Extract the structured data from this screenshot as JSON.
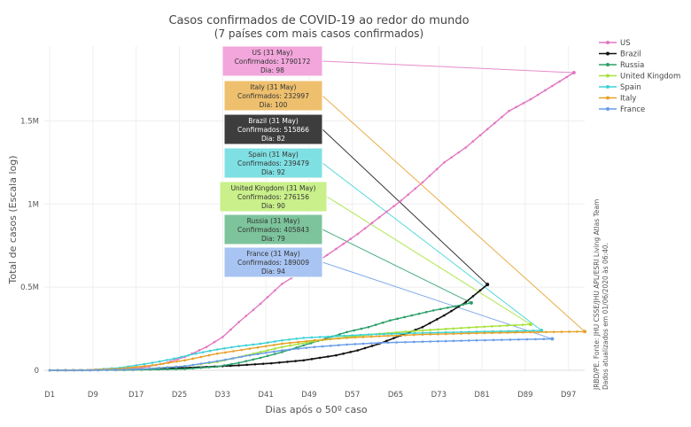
{
  "chart_data": {
    "type": "line",
    "title": "Casos confirmados de COVID-19 ao redor do mundo",
    "subtitle": "(7 países com mais casos confirmados)",
    "xlabel": "Dias após o 50º caso",
    "ylabel": "Total de casos (Escala log)",
    "xlim": [
      0,
      100
    ],
    "ylim": [
      0,
      1950000
    ],
    "x_ticks": [
      {
        "value": 1,
        "label": "D1"
      },
      {
        "value": 9,
        "label": "D9"
      },
      {
        "value": 17,
        "label": "D17"
      },
      {
        "value": 25,
        "label": "D25"
      },
      {
        "value": 33,
        "label": "D33"
      },
      {
        "value": 41,
        "label": "D41"
      },
      {
        "value": 49,
        "label": "D49"
      },
      {
        "value": 57,
        "label": "D57"
      },
      {
        "value": 65,
        "label": "D65"
      },
      {
        "value": 73,
        "label": "D73"
      },
      {
        "value": 81,
        "label": "D81"
      },
      {
        "value": 89,
        "label": "D89"
      },
      {
        "value": 97,
        "label": "D97"
      }
    ],
    "y_ticks": [
      {
        "value": 0,
        "label": "0"
      },
      {
        "value": 500000,
        "label": "0.5M"
      },
      {
        "value": 1000000,
        "label": "1M"
      },
      {
        "value": 1500000,
        "label": "1.5M"
      }
    ],
    "grid": true,
    "legend_position": "top-right",
    "series": [
      {
        "name": "US",
        "color": "#e377c2",
        "label_color": "#f2a6db",
        "end_day": 98,
        "end_value": 1790172,
        "points": [
          [
            1,
            60
          ],
          [
            10,
            2000
          ],
          [
            18,
            15000
          ],
          [
            22,
            40000
          ],
          [
            26,
            80000
          ],
          [
            30,
            140000
          ],
          [
            33,
            200000
          ],
          [
            36,
            290000
          ],
          [
            40,
            400000
          ],
          [
            44,
            520000
          ],
          [
            49,
            620000
          ],
          [
            54,
            730000
          ],
          [
            58,
            820000
          ],
          [
            62,
            920000
          ],
          [
            66,
            1020000
          ],
          [
            70,
            1130000
          ],
          [
            74,
            1250000
          ],
          [
            78,
            1340000
          ],
          [
            82,
            1450000
          ],
          [
            86,
            1560000
          ],
          [
            90,
            1630000
          ],
          [
            94,
            1710000
          ],
          [
            98,
            1790172
          ]
        ],
        "box": {
          "title": "US (31 May)",
          "line2": "Confirmados: 1790172",
          "line3": "Dia: 98"
        }
      },
      {
        "name": "Brazil",
        "color": "#111111",
        "label_color": "#3d3d3d",
        "end_day": 82,
        "end_value": 515866,
        "points": [
          [
            1,
            50
          ],
          [
            10,
            800
          ],
          [
            18,
            4000
          ],
          [
            24,
            12000
          ],
          [
            30,
            20000
          ],
          [
            36,
            30000
          ],
          [
            42,
            42000
          ],
          [
            48,
            60000
          ],
          [
            54,
            90000
          ],
          [
            58,
            120000
          ],
          [
            62,
            160000
          ],
          [
            66,
            210000
          ],
          [
            70,
            260000
          ],
          [
            74,
            330000
          ],
          [
            78,
            410000
          ],
          [
            82,
            515866
          ]
        ],
        "box": {
          "title": "Brazil (31 May)",
          "line2": "Confirmados: 515866",
          "line3": "Dia: 82"
        }
      },
      {
        "name": "Russia",
        "color": "#2ca06a",
        "label_color": "#7dc49c",
        "end_day": 79,
        "end_value": 405843,
        "points": [
          [
            1,
            50
          ],
          [
            10,
            1000
          ],
          [
            18,
            3000
          ],
          [
            26,
            8000
          ],
          [
            32,
            22000
          ],
          [
            36,
            45000
          ],
          [
            40,
            75000
          ],
          [
            44,
            110000
          ],
          [
            48,
            150000
          ],
          [
            52,
            190000
          ],
          [
            56,
            230000
          ],
          [
            60,
            260000
          ],
          [
            64,
            300000
          ],
          [
            68,
            330000
          ],
          [
            72,
            360000
          ],
          [
            76,
            385000
          ],
          [
            79,
            405843
          ]
        ],
        "box": {
          "title": "Russia (31 May)",
          "line2": "Confirmados: 405843",
          "line3": "Dia: 79"
        }
      },
      {
        "name": "United Kingdom",
        "color": "#a6e23a",
        "label_color": "#c9f08a",
        "end_day": 90,
        "end_value": 276156,
        "points": [
          [
            1,
            50
          ],
          [
            10,
            1500
          ],
          [
            18,
            8000
          ],
          [
            26,
            25000
          ],
          [
            32,
            50000
          ],
          [
            36,
            80000
          ],
          [
            40,
            110000
          ],
          [
            44,
            140000
          ],
          [
            50,
            175000
          ],
          [
            56,
            200000
          ],
          [
            62,
            220000
          ],
          [
            70,
            240000
          ],
          [
            80,
            260000
          ],
          [
            90,
            276156
          ]
        ],
        "box": {
          "title": "United Kingdom (31 May)",
          "line2": "Confirmados: 276156",
          "line3": "Dia: 90"
        }
      },
      {
        "name": "Spain",
        "color": "#3cd2d6",
        "label_color": "#7fe0e3",
        "end_day": 92,
        "end_value": 239479,
        "points": [
          [
            1,
            50
          ],
          [
            8,
            2000
          ],
          [
            14,
            15000
          ],
          [
            20,
            45000
          ],
          [
            24,
            70000
          ],
          [
            28,
            100000
          ],
          [
            32,
            125000
          ],
          [
            36,
            145000
          ],
          [
            40,
            160000
          ],
          [
            44,
            180000
          ],
          [
            48,
            195000
          ],
          [
            54,
            205000
          ],
          [
            60,
            215000
          ],
          [
            70,
            225000
          ],
          [
            80,
            232000
          ],
          [
            92,
            239479
          ]
        ],
        "box": {
          "title": "Spain (31 May)",
          "line2": "Confirmados: 239479",
          "line3": "Dia: 92"
        }
      },
      {
        "name": "Italy",
        "color": "#e6a227",
        "label_color": "#eec06e",
        "end_day": 100,
        "end_value": 232997,
        "points": [
          [
            1,
            50
          ],
          [
            8,
            2000
          ],
          [
            14,
            10000
          ],
          [
            20,
            30000
          ],
          [
            26,
            60000
          ],
          [
            32,
            100000
          ],
          [
            38,
            130000
          ],
          [
            44,
            160000
          ],
          [
            50,
            180000
          ],
          [
            56,
            195000
          ],
          [
            62,
            205000
          ],
          [
            70,
            215000
          ],
          [
            80,
            223000
          ],
          [
            90,
            229000
          ],
          [
            100,
            232997
          ]
        ],
        "box": {
          "title": "Italy (31 May)",
          "line2": "Confirmados: 232997",
          "line3": "Dia: 100"
        }
      },
      {
        "name": "France",
        "color": "#6a9de8",
        "label_color": "#a8c4f2",
        "end_day": 94,
        "end_value": 189009,
        "points": [
          [
            1,
            50
          ],
          [
            10,
            1000
          ],
          [
            18,
            7000
          ],
          [
            26,
            25000
          ],
          [
            32,
            55000
          ],
          [
            38,
            90000
          ],
          [
            44,
            120000
          ],
          [
            50,
            140000
          ],
          [
            56,
            155000
          ],
          [
            62,
            165000
          ],
          [
            70,
            172000
          ],
          [
            80,
            180000
          ],
          [
            94,
            189009
          ]
        ],
        "box": {
          "title": "France (31 May)",
          "line2": "Confirmados: 189009",
          "line3": "Dia: 94"
        }
      }
    ],
    "source_note_line1": "JRBD/PE. Fonte: JHU CSSE/JHU APL/ESRI Living Atlas Team",
    "source_note_line2": "Dados atualizados em 01/06/2020 às 06:40."
  }
}
